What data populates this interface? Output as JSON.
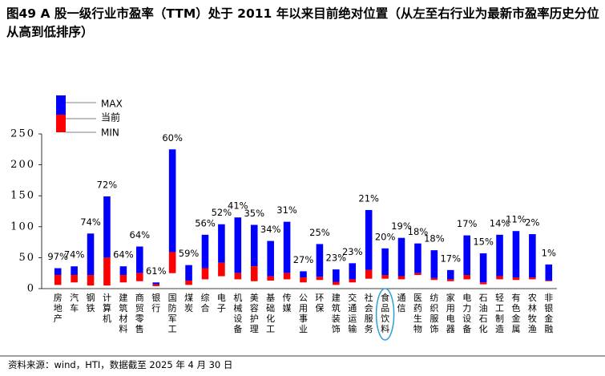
{
  "chart_data": {
    "type": "floating-bar",
    "title": "图49 A 股一级行业市盈率（TTM）处于 2011 年以来目前绝对位置（从左至右行业为最新市盈率历史分位从高到低排序）",
    "source": "资料来源：wind，HTI，数据截至 2025 年 4 月 30 日",
    "categories": [
      "房地产",
      "汽车",
      "钢铁",
      "计算机",
      "建筑材料",
      "商贸零售",
      "银行",
      "国防军工",
      "煤炭",
      "综合",
      "电子",
      "机械设备",
      "美容护理",
      "基础化工",
      "传媒",
      "公用事业",
      "环保",
      "建筑装饰",
      "交通运输",
      "社会服务",
      "食品饮料",
      "通信",
      "医药生物",
      "纺织服饰",
      "家用电器",
      "电力设备",
      "石油石化",
      "轻工制造",
      "有色金属",
      "农林牧渔",
      "非银金融"
    ],
    "series": [
      {
        "name": "MAX",
        "color": "#0000ff",
        "values": [
          33,
          36,
          89,
          149,
          36,
          68,
          10,
          225,
          38,
          87,
          104,
          115,
          103,
          77,
          108,
          28,
          72,
          31,
          41,
          127,
          65,
          82,
          73,
          62,
          30,
          86,
          57,
          87,
          93,
          88,
          39
        ]
      },
      {
        "name": "当前",
        "color": "#ff0000",
        "values": [
          22,
          22,
          22,
          50,
          22,
          25,
          7,
          59,
          13,
          33,
          42,
          25,
          36,
          20,
          25,
          18,
          19,
          11,
          15,
          30,
          22,
          20,
          25,
          17,
          15,
          22,
          10,
          20,
          18,
          18,
          13
        ]
      },
      {
        "name": "MIN",
        "values": [
          6,
          10,
          5,
          5,
          10,
          12,
          4,
          25,
          6,
          15,
          20,
          15,
          12,
          13,
          15,
          10,
          14,
          6,
          10,
          16,
          16,
          15,
          22,
          14,
          12,
          15,
          7,
          15,
          14,
          15,
          12
        ]
      }
    ],
    "percentile_labels": [
      "97%",
      "74%",
      "74%",
      "72%",
      "64%",
      "64%",
      "61%",
      "60%",
      "59%",
      "56%",
      "52%",
      "41%",
      "35%",
      "34%",
      "31%",
      "27%",
      "25%",
      "23%",
      "23%",
      "21%",
      "20%",
      "19%",
      "18%",
      "18%",
      "17%",
      "17%",
      "15%",
      "14%",
      "11%",
      "2%",
      "1%"
    ],
    "highlight": "食品饮料",
    "ylim": [
      0,
      250
    ],
    "yticks": [
      0,
      50,
      100,
      150,
      200,
      250
    ]
  }
}
